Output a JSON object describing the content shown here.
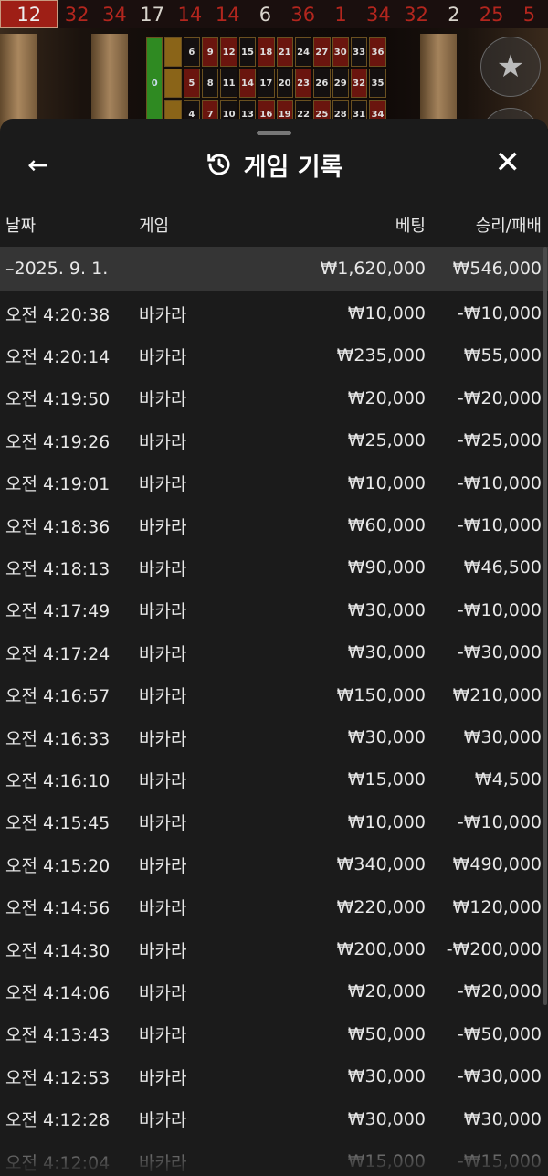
{
  "history": [
    "12",
    "32",
    "34",
    "17",
    "14",
    "14",
    "6",
    "36",
    "1",
    "34",
    "32",
    "2",
    "25",
    "5"
  ],
  "history_colors": [
    "red",
    "red",
    "red",
    "black",
    "red",
    "red",
    "black",
    "red",
    "red",
    "red",
    "red",
    "black",
    "red",
    "red"
  ],
  "board": {
    "rows": [
      [
        "6",
        "9",
        "12",
        "15",
        "18",
        "21",
        "24",
        "27",
        "30",
        "33",
        "36"
      ],
      [
        "5",
        "8",
        "11",
        "14",
        "17",
        "20",
        "23",
        "26",
        "29",
        "32",
        "35"
      ],
      [
        "4",
        "7",
        "10",
        "13",
        "16",
        "19",
        "22",
        "25",
        "28",
        "31",
        "34"
      ]
    ],
    "zero": "0"
  },
  "panel": {
    "title": "게임 기록",
    "back_icon": "arrow-left-icon",
    "history_icon": "history-icon",
    "close_icon": "close-icon"
  },
  "columns": {
    "date": "날짜",
    "game": "게임",
    "bet": "베팅",
    "result": "승리/패배"
  },
  "summary": {
    "date": "–2025. 9. 1.",
    "bet": "₩1,620,000",
    "result": "₩546,000"
  },
  "rows": [
    {
      "time": "오전 4:20:38",
      "game": "바카라",
      "bet": "₩10,000",
      "result": "-₩10,000"
    },
    {
      "time": "오전 4:20:14",
      "game": "바카라",
      "bet": "₩235,000",
      "result": "₩55,000"
    },
    {
      "time": "오전 4:19:50",
      "game": "바카라",
      "bet": "₩20,000",
      "result": "-₩20,000"
    },
    {
      "time": "오전 4:19:26",
      "game": "바카라",
      "bet": "₩25,000",
      "result": "-₩25,000"
    },
    {
      "time": "오전 4:19:01",
      "game": "바카라",
      "bet": "₩10,000",
      "result": "-₩10,000"
    },
    {
      "time": "오전 4:18:36",
      "game": "바카라",
      "bet": "₩60,000",
      "result": "-₩10,000"
    },
    {
      "time": "오전 4:18:13",
      "game": "바카라",
      "bet": "₩90,000",
      "result": "₩46,500"
    },
    {
      "time": "오전 4:17:49",
      "game": "바카라",
      "bet": "₩30,000",
      "result": "-₩10,000"
    },
    {
      "time": "오전 4:17:24",
      "game": "바카라",
      "bet": "₩30,000",
      "result": "-₩30,000"
    },
    {
      "time": "오전 4:16:57",
      "game": "바카라",
      "bet": "₩150,000",
      "result": "₩210,000"
    },
    {
      "time": "오전 4:16:33",
      "game": "바카라",
      "bet": "₩30,000",
      "result": "₩30,000"
    },
    {
      "time": "오전 4:16:10",
      "game": "바카라",
      "bet": "₩15,000",
      "result": "₩4,500"
    },
    {
      "time": "오전 4:15:45",
      "game": "바카라",
      "bet": "₩10,000",
      "result": "-₩10,000"
    },
    {
      "time": "오전 4:15:20",
      "game": "바카라",
      "bet": "₩340,000",
      "result": "₩490,000"
    },
    {
      "time": "오전 4:14:56",
      "game": "바카라",
      "bet": "₩220,000",
      "result": "₩120,000"
    },
    {
      "time": "오전 4:14:30",
      "game": "바카라",
      "bet": "₩200,000",
      "result": "-₩200,000"
    },
    {
      "time": "오전 4:14:06",
      "game": "바카라",
      "bet": "₩20,000",
      "result": "-₩20,000"
    },
    {
      "time": "오전 4:13:43",
      "game": "바카라",
      "bet": "₩50,000",
      "result": "-₩50,000"
    },
    {
      "time": "오전 4:12:53",
      "game": "바카라",
      "bet": "₩30,000",
      "result": "-₩30,000"
    },
    {
      "time": "오전 4:12:28",
      "game": "바카라",
      "bet": "₩30,000",
      "result": "₩30,000"
    },
    {
      "time": "오전 4:12:04",
      "game": "바카라",
      "bet": "₩15,000",
      "result": "-₩15,000"
    }
  ]
}
